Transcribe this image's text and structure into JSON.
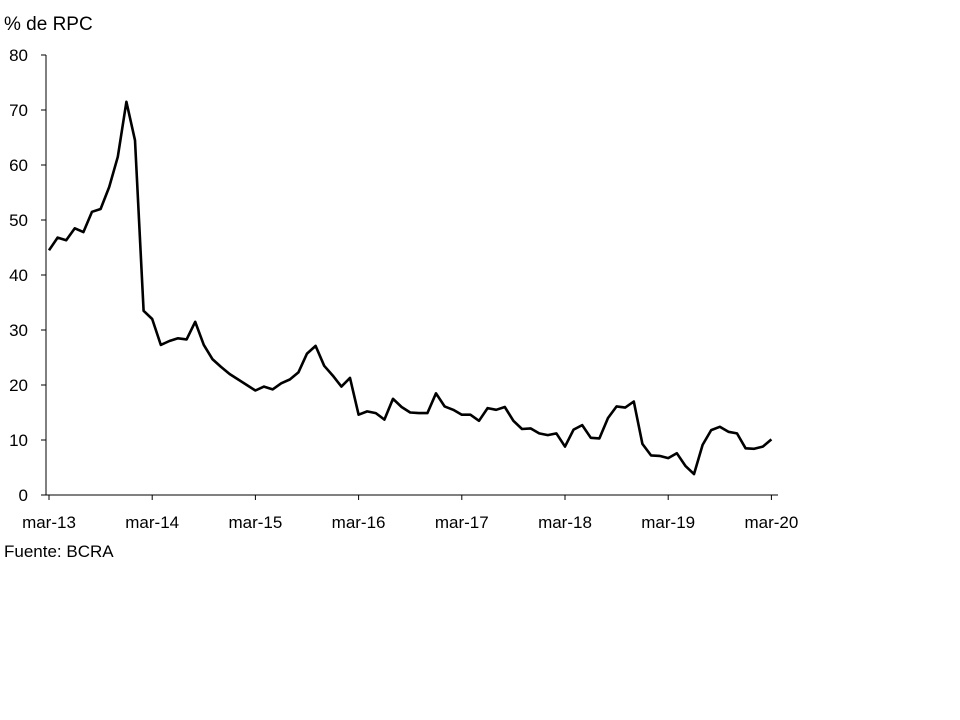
{
  "chart_data": {
    "type": "line",
    "ylabel": "% de RPC",
    "source": "Fuente: BCRA",
    "ylim": [
      0,
      80
    ],
    "yticks": [
      "0",
      "10",
      "20",
      "30",
      "40",
      "50",
      "60",
      "70",
      "80"
    ],
    "xticks": [
      "mar-13",
      "mar-14",
      "mar-15",
      "mar-16",
      "mar-17",
      "mar-18",
      "mar-19",
      "mar-20"
    ],
    "x_start": "mar-13",
    "x_end": "may-20",
    "grid": false,
    "legend": "none",
    "series": [
      {
        "color": "#000000",
        "values": [
          44.5,
          46.8,
          46.3,
          48.5,
          47.8,
          51.5,
          52,
          56,
          61.5,
          71.5,
          64.5,
          33.5,
          32,
          27.3,
          28,
          28.5,
          28.3,
          31.5,
          27.3,
          24.7,
          23.3,
          22,
          21,
          20,
          19,
          19.7,
          19.2,
          20.3,
          21,
          22.3,
          25.7,
          27.1,
          23.5,
          21.7,
          19.7,
          21.3,
          14.6,
          15.2,
          14.9,
          13.7,
          17.5,
          16,
          15,
          14.9,
          14.9,
          18.5,
          16.1,
          15.5,
          14.6,
          14.6,
          13.5,
          15.8,
          15.5,
          16,
          13.5,
          12,
          12.1,
          11.2,
          10.9,
          11.2,
          8.8,
          11.9,
          12.7,
          10.4,
          10.3,
          14,
          16.1,
          15.9,
          17,
          9.3,
          7.2,
          7.1,
          6.7,
          7.6,
          5.3,
          3.8,
          9.1,
          11.8,
          12.4,
          11.5,
          11.2,
          8.5,
          8.4,
          8.8,
          10.1
        ]
      }
    ]
  }
}
